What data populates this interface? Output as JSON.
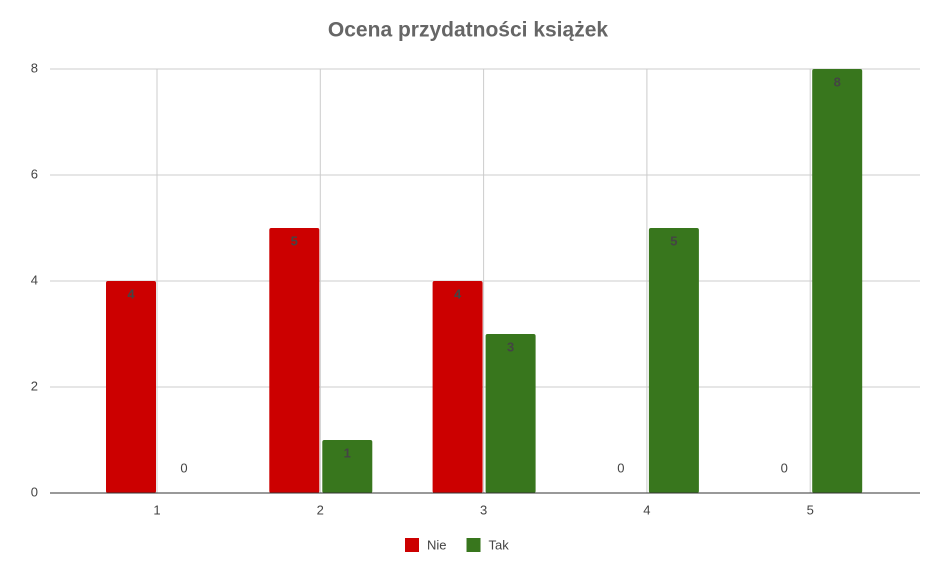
{
  "chart_data": {
    "type": "bar",
    "title": "Ocena przydatności książek",
    "categories": [
      "1",
      "2",
      "3",
      "4",
      "5"
    ],
    "series": [
      {
        "name": "Nie",
        "color": "#cc0000",
        "values": [
          4,
          5,
          4,
          0,
          0
        ]
      },
      {
        "name": "Tak",
        "color": "#38761d",
        "values": [
          0,
          1,
          3,
          5,
          8
        ]
      }
    ],
    "ylim": [
      0,
      8
    ],
    "yticks": [
      0,
      2,
      4,
      6,
      8
    ],
    "grid": true,
    "legend": "bottom"
  }
}
